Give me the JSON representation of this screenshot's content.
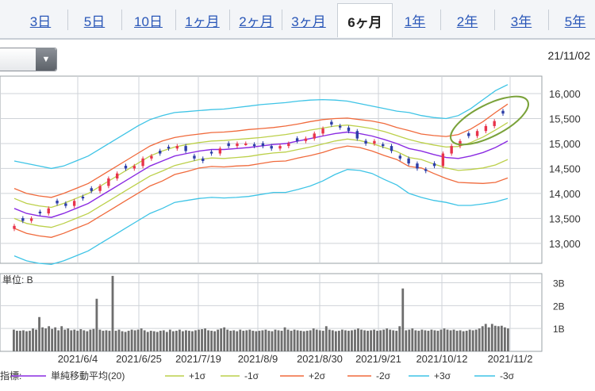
{
  "tabs": [
    {
      "label": "3日",
      "active": false
    },
    {
      "label": "5日",
      "active": false
    },
    {
      "label": "10日",
      "active": false
    },
    {
      "label": "1ヶ月",
      "active": false
    },
    {
      "label": "2ヶ月",
      "active": false
    },
    {
      "label": "3ヶ月",
      "active": false
    },
    {
      "label": "6ヶ月",
      "active": true
    },
    {
      "label": "1年",
      "active": false
    },
    {
      "label": "2年",
      "active": false
    },
    {
      "label": "3年",
      "active": false
    },
    {
      "label": "5年",
      "active": false
    }
  ],
  "toolbar": {
    "dropdown_icon": "triangle-down-icon",
    "date": "21/11/02"
  },
  "chart_data": {
    "type": "candlestick",
    "price_ylim": [
      12600,
      16350
    ],
    "price_ticks": [
      "16,000",
      "15,500",
      "15,000",
      "14,500",
      "14,000",
      "13,500",
      "13,000"
    ],
    "price_tick_values": [
      16000,
      15500,
      15000,
      14500,
      14000,
      13500,
      13000
    ],
    "x_ticks": [
      "2021/6/4",
      "2021/6/25",
      "2021/7/19",
      "2021/8/9",
      "2021/8/30",
      "2021/9/21",
      "2021/10/12",
      "2021/11/2"
    ],
    "volume_unit_label": "単位: B",
    "volume_ticks": [
      "3B",
      "2B",
      "1B"
    ],
    "volume_tick_values": [
      3,
      2,
      1
    ],
    "volume_ylim": [
      0,
      3.4
    ],
    "close_path": [
      13350,
      13450,
      13500,
      13600,
      13700,
      13800,
      13750,
      13850,
      13900,
      14050,
      14150,
      14300,
      14400,
      14500,
      14550,
      14700,
      14750,
      14800,
      14900,
      14950,
      14850,
      14700,
      14650,
      14800,
      14900,
      14950,
      15000,
      15000,
      14950,
      14950,
      14900,
      14950,
      15000,
      15050,
      15100,
      15200,
      15300,
      15380,
      15320,
      15250,
      15100,
      15000,
      15050,
      14950,
      14850,
      14700,
      14600,
      14500,
      14450,
      14550,
      14800,
      14950,
      15050,
      15150,
      15250,
      15350,
      15450,
      15600
    ],
    "ma20_path": [
      13700,
      13600,
      13550,
      13520,
      13600,
      13700,
      13800,
      13950,
      14100,
      14250,
      14400,
      14550,
      14650,
      14750,
      14800,
      14850,
      14880,
      14880,
      14900,
      14920,
      14950,
      14980,
      15000,
      15050,
      15100,
      15150,
      15200,
      15230,
      15200,
      15150,
      15080,
      15000,
      14900,
      14850,
      14780,
      14720,
      14700,
      14750,
      14820,
      14920,
      15050
    ],
    "bands": [
      {
        "name": "+1σ",
        "color": "#bcd04a",
        "path": [
          13900,
          13800,
          13750,
          13720,
          13800,
          13900,
          14000,
          14150,
          14300,
          14450,
          14600,
          14750,
          14850,
          14930,
          14980,
          15020,
          15050,
          15060,
          15080,
          15100,
          15120,
          15150,
          15180,
          15220,
          15270,
          15310,
          15350,
          15370,
          15340,
          15300,
          15240,
          15160,
          15080,
          15020,
          14970,
          14930,
          14940,
          15020,
          15130,
          15270,
          15420
        ]
      },
      {
        "name": "-1σ",
        "color": "#bcd04a",
        "path": [
          13500,
          13400,
          13350,
          13320,
          13400,
          13500,
          13600,
          13750,
          13900,
          14050,
          14200,
          14350,
          14450,
          14560,
          14620,
          14680,
          14710,
          14700,
          14720,
          14740,
          14780,
          14810,
          14830,
          14880,
          14930,
          14990,
          15050,
          15090,
          15060,
          15000,
          14920,
          14840,
          14720,
          14680,
          14590,
          14510,
          14460,
          14480,
          14510,
          14570,
          14680
        ]
      },
      {
        "name": "+2σ",
        "color": "#f06a3c",
        "path": [
          14100,
          14000,
          13950,
          13920,
          14000,
          14100,
          14200,
          14350,
          14500,
          14650,
          14800,
          14950,
          15050,
          15120,
          15160,
          15190,
          15220,
          15230,
          15250,
          15280,
          15300,
          15320,
          15350,
          15390,
          15440,
          15480,
          15500,
          15510,
          15480,
          15450,
          15400,
          15320,
          15260,
          15190,
          15160,
          15140,
          15180,
          15290,
          15440,
          15620,
          15790
        ]
      },
      {
        "name": "-2σ",
        "color": "#f06a3c",
        "path": [
          13300,
          13200,
          13150,
          13120,
          13200,
          13300,
          13400,
          13550,
          13700,
          13850,
          14000,
          14150,
          14250,
          14380,
          14440,
          14510,
          14540,
          14530,
          14550,
          14560,
          14600,
          14640,
          14650,
          14710,
          14760,
          14820,
          14900,
          14950,
          14920,
          14850,
          14760,
          14680,
          14540,
          14510,
          14400,
          14300,
          14220,
          14210,
          14200,
          14220,
          14310
        ]
      },
      {
        "name": "+3σ",
        "color": "#3ec4e6",
        "path": [
          14650,
          14600,
          14550,
          14500,
          14550,
          14650,
          14750,
          14900,
          15050,
          15200,
          15350,
          15480,
          15560,
          15620,
          15640,
          15660,
          15680,
          15690,
          15720,
          15750,
          15780,
          15800,
          15820,
          15850,
          15870,
          15880,
          15870,
          15850,
          15800,
          15750,
          15700,
          15650,
          15620,
          15560,
          15520,
          15500,
          15560,
          15700,
          15880,
          16060,
          16180
        ]
      },
      {
        "name": "-3σ",
        "color": "#3ec4e6",
        "path": [
          12750,
          12650,
          12600,
          12580,
          12650,
          12750,
          12850,
          13000,
          13150,
          13300,
          13450,
          13600,
          13700,
          13820,
          13860,
          13900,
          13920,
          13910,
          13920,
          13940,
          13980,
          14020,
          14020,
          14080,
          14150,
          14250,
          14380,
          14480,
          14460,
          14400,
          14280,
          14170,
          14000,
          13920,
          13860,
          13820,
          13760,
          13760,
          13790,
          13830,
          13900
        ]
      }
    ],
    "volume_b": [
      0.95,
      0.9,
      0.9,
      0.92,
      0.88,
      0.9,
      1.0,
      0.95,
      1.5,
      1.05,
      1.0,
      1.1,
      0.98,
      1.05,
      0.92,
      1.1,
      0.95,
      1.0,
      0.92,
      0.95,
      0.9,
      0.97,
      0.92,
      0.88,
      0.95,
      0.98,
      2.3,
      0.95,
      0.9,
      0.92,
      0.9,
      3.3,
      0.9,
      0.95,
      0.88,
      0.85,
      0.9,
      0.95,
      0.92,
      0.95,
      1.0,
      0.92,
      0.85,
      0.9,
      0.88,
      0.85,
      0.9,
      0.92,
      0.85,
      0.95,
      0.88,
      0.9,
      0.95,
      0.88,
      0.92,
      0.9,
      0.88,
      0.92,
      0.95,
      0.97,
      1.0,
      0.92,
      0.9,
      0.88,
      0.95,
      1.0,
      1.05,
      0.95,
      0.9,
      0.92,
      0.88,
      0.95,
      0.9,
      0.92,
      0.95,
      0.9,
      0.88,
      0.9,
      0.92,
      0.95,
      0.9,
      0.88,
      0.95,
      0.92,
      0.9,
      1.05,
      0.95,
      0.9,
      0.95,
      0.92,
      0.9,
      0.88,
      0.9,
      0.92,
      1.0,
      0.95,
      0.92,
      0.9,
      1.1,
      0.95,
      0.92,
      0.88,
      0.9,
      0.95,
      0.92,
      0.9,
      0.92,
      0.95,
      1.0,
      0.95,
      0.92,
      0.9,
      0.92,
      0.95,
      0.9,
      0.92,
      0.95,
      1.0,
      0.95,
      0.92,
      0.9,
      1.1,
      2.75,
      0.92,
      0.95,
      1.0,
      0.92,
      0.9,
      0.95,
      0.92,
      0.9,
      0.95,
      0.92,
      0.9,
      0.95,
      1.0,
      0.95,
      0.92,
      0.95,
      0.9,
      0.92,
      0.88,
      0.9,
      0.95,
      0.92,
      0.95,
      1.0,
      1.1,
      1.2,
      1.05,
      1.2,
      1.12,
      1.1,
      1.12,
      1.05,
      1.0
    ],
    "legend_prefix": "表示期間の指標:",
    "legend": [
      {
        "label": "単純移動平均(20)",
        "color": "#8a2be2"
      },
      {
        "label": "+1σ",
        "color": "#bcd04a"
      },
      {
        "label": "-1σ",
        "color": "#bcd04a"
      },
      {
        "label": "+2σ",
        "color": "#f06a3c"
      },
      {
        "label": "-2σ",
        "color": "#f06a3c"
      },
      {
        "label": "+3σ",
        "color": "#3ec4e6"
      },
      {
        "label": "-3σ",
        "color": "#3ec4e6"
      }
    ],
    "colors": {
      "up": "#e8344b",
      "down": "#2d3ea8",
      "ma": "#8a2be2",
      "highlight": "#7aa23a",
      "volume": "#6e6e6e",
      "grid": "#cfd3d8"
    }
  }
}
